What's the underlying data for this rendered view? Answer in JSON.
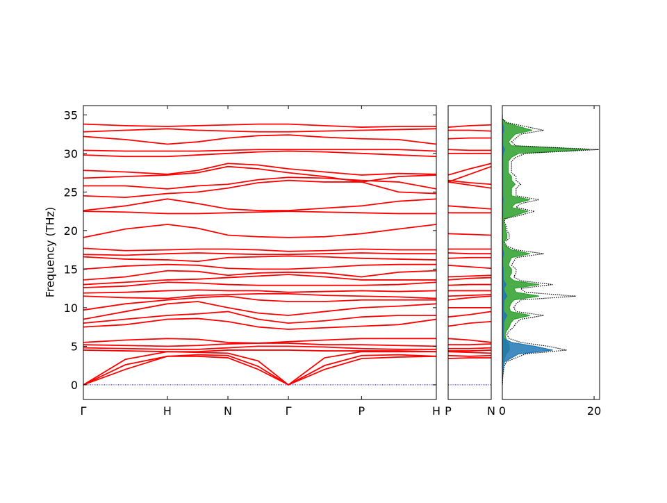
{
  "chart_data": [
    {
      "type": "line",
      "ylabel": "Frequency (THz)",
      "color": "#ff0000",
      "hline": {
        "value": 0,
        "color": "#0000ff"
      },
      "xlim": [
        0,
        4.2
      ],
      "xticks": [
        {
          "value": 0,
          "label": "Γ"
        },
        {
          "value": 1,
          "label": "H"
        },
        {
          "value": 1.72,
          "label": "N"
        },
        {
          "value": 2.44,
          "label": "Γ"
        },
        {
          "value": 3.31,
          "label": "P"
        },
        {
          "value": 4.2,
          "label": "H"
        }
      ],
      "ylim": [
        -1.9,
        36.2
      ],
      "yticks": [
        0,
        5,
        10,
        15,
        20,
        25,
        30,
        35
      ],
      "x": [
        0,
        0.5,
        1.0,
        1.36,
        1.72,
        2.08,
        2.44,
        2.87,
        3.31,
        3.75,
        4.2
      ],
      "bands": [
        [
          0,
          2.0,
          3.7,
          3.7,
          3.5,
          2.0,
          0,
          2.0,
          3.4,
          3.6,
          3.7
        ],
        [
          0,
          2.6,
          3.7,
          3.9,
          3.8,
          2.4,
          0,
          2.5,
          3.8,
          3.9,
          3.7
        ],
        [
          0,
          3.3,
          4.3,
          4.2,
          4.1,
          3.1,
          0,
          3.5,
          4.3,
          4.3,
          4.3
        ],
        [
          4.5,
          4.4,
          4.3,
          4.3,
          4.5,
          4.5,
          4.5,
          4.4,
          4.4,
          4.4,
          4.3
        ],
        [
          4.8,
          4.7,
          4.6,
          4.6,
          4.8,
          5.0,
          5.0,
          4.9,
          4.7,
          4.6,
          4.6
        ],
        [
          5.2,
          5.1,
          5.0,
          5.1,
          5.3,
          5.4,
          5.4,
          5.2,
          5.2,
          5.1,
          5.0
        ],
        [
          5.5,
          5.8,
          6.0,
          5.9,
          5.5,
          5.4,
          5.6,
          5.8,
          6.0,
          6.0,
          6.0
        ],
        [
          7.5,
          7.8,
          8.5,
          8.6,
          8.2,
          7.5,
          7.2,
          7.4,
          7.6,
          7.8,
          8.5
        ],
        [
          8.0,
          8.5,
          9.0,
          9.2,
          9.5,
          8.5,
          8.0,
          8.3,
          8.8,
          9.0,
          9.0
        ],
        [
          8.5,
          9.5,
          10.5,
          10.8,
          10.0,
          9.3,
          9.0,
          9.5,
          10.0,
          10.2,
          10.5
        ],
        [
          9.7,
          10.5,
          11.0,
          11.3,
          11.5,
          11.0,
          10.8,
          10.8,
          11.0,
          11.0,
          11.0
        ],
        [
          11.5,
          11.3,
          11.2,
          11.6,
          11.7,
          11.8,
          11.8,
          11.6,
          11.5,
          11.4,
          11.2
        ],
        [
          11.9,
          12.0,
          12.2,
          12.3,
          12.2,
          12.2,
          12.0,
          12.1,
          12.2,
          12.1,
          12.2
        ],
        [
          12.6,
          12.8,
          13.3,
          13.2,
          13.0,
          12.9,
          12.9,
          12.9,
          12.9,
          13.0,
          13.3
        ],
        [
          13.0,
          13.3,
          13.6,
          13.7,
          13.9,
          14.1,
          14.3,
          14.0,
          13.6,
          13.6,
          13.6
        ],
        [
          13.6,
          14.0,
          14.8,
          14.7,
          14.2,
          14.5,
          14.6,
          14.5,
          14.0,
          14.6,
          14.8
        ],
        [
          15.0,
          15.4,
          15.6,
          15.5,
          15.1,
          15.0,
          15.0,
          15.2,
          15.5,
          15.6,
          15.6
        ],
        [
          16.6,
          16.3,
          16.2,
          16.0,
          16.5,
          16.6,
          16.7,
          16.6,
          16.4,
          16.3,
          16.2
        ],
        [
          16.9,
          16.8,
          17.0,
          17.1,
          17.0,
          16.9,
          16.9,
          17.0,
          17.1,
          17.0,
          17.0
        ],
        [
          17.7,
          17.4,
          17.5,
          17.6,
          17.6,
          17.5,
          17.3,
          17.4,
          17.6,
          17.5,
          17.5
        ],
        [
          19.1,
          20.2,
          20.8,
          20.3,
          19.4,
          19.2,
          19.1,
          19.2,
          19.6,
          20.2,
          20.8
        ],
        [
          22.5,
          22.4,
          22.2,
          22.2,
          22.3,
          22.4,
          22.5,
          22.4,
          22.3,
          22.2,
          22.2
        ],
        [
          22.6,
          23.2,
          24.1,
          23.5,
          22.8,
          22.6,
          22.6,
          22.9,
          23.2,
          23.8,
          24.1
        ],
        [
          24.5,
          24.3,
          24.8,
          25.0,
          25.5,
          26.2,
          26.5,
          26.3,
          26.3,
          25.0,
          24.8
        ],
        [
          25.8,
          25.8,
          25.4,
          25.8,
          26.0,
          26.6,
          26.9,
          26.8,
          26.5,
          26.3,
          25.4
        ],
        [
          26.8,
          27.0,
          27.2,
          27.5,
          28.3,
          28.0,
          27.5,
          27.0,
          26.3,
          27.0,
          27.2
        ],
        [
          27.8,
          27.6,
          27.3,
          27.8,
          28.7,
          28.5,
          28.0,
          27.6,
          27.2,
          27.4,
          27.3
        ],
        [
          29.8,
          29.6,
          29.6,
          29.8,
          30.0,
          30.2,
          30.3,
          30.2,
          30.0,
          29.8,
          29.6
        ],
        [
          30.4,
          30.3,
          30.3,
          30.3,
          30.4,
          30.5,
          30.5,
          30.5,
          30.5,
          30.5,
          30.3
        ],
        [
          32.2,
          31.8,
          31.2,
          31.5,
          32.0,
          32.3,
          32.4,
          32.1,
          31.9,
          31.8,
          31.2
        ],
        [
          32.8,
          33.0,
          33.2,
          33.0,
          32.9,
          32.8,
          32.8,
          32.9,
          33.0,
          33.1,
          33.2
        ],
        [
          33.8,
          33.6,
          33.5,
          33.6,
          33.7,
          33.8,
          33.8,
          33.6,
          33.4,
          33.5,
          33.5
        ]
      ]
    },
    {
      "type": "line",
      "color": "#ff0000",
      "hline": {
        "value": 0,
        "color": "#0000ff"
      },
      "xlim": [
        0,
        1
      ],
      "xticks": [
        {
          "value": 0,
          "label": "P"
        },
        {
          "value": 1,
          "label": "N"
        }
      ],
      "ylim": [
        -1.9,
        36.2
      ],
      "x": [
        0,
        0.5,
        1
      ],
      "bands": [
        [
          3.4,
          3.5,
          3.5
        ],
        [
          3.8,
          3.7,
          3.8
        ],
        [
          4.3,
          4.2,
          4.1
        ],
        [
          4.4,
          4.4,
          4.5
        ],
        [
          4.7,
          4.7,
          4.8
        ],
        [
          5.2,
          5.2,
          5.3
        ],
        [
          6.0,
          5.8,
          5.5
        ],
        [
          7.6,
          8.0,
          8.2
        ],
        [
          8.8,
          9.1,
          9.5
        ],
        [
          10.0,
          10.0,
          10.0
        ],
        [
          11.0,
          11.3,
          11.5
        ],
        [
          11.5,
          11.6,
          11.7
        ],
        [
          12.2,
          12.2,
          12.2
        ],
        [
          12.9,
          13.0,
          13.0
        ],
        [
          13.6,
          13.8,
          13.9
        ],
        [
          14.0,
          14.1,
          14.2
        ],
        [
          15.5,
          15.3,
          15.1
        ],
        [
          16.4,
          16.5,
          16.5
        ],
        [
          17.1,
          17.0,
          17.0
        ],
        [
          17.6,
          17.6,
          17.6
        ],
        [
          19.6,
          19.5,
          19.4
        ],
        [
          22.3,
          22.3,
          22.3
        ],
        [
          23.2,
          23.0,
          22.8
        ],
        [
          26.3,
          25.9,
          25.5
        ],
        [
          26.5,
          26.2,
          26.0
        ],
        [
          26.3,
          27.3,
          28.3
        ],
        [
          27.2,
          28.0,
          28.7
        ],
        [
          30.0,
          30.0,
          30.0
        ],
        [
          30.5,
          30.4,
          30.4
        ],
        [
          31.9,
          32.0,
          32.0
        ],
        [
          33.0,
          33.0,
          32.9
        ],
        [
          33.4,
          33.6,
          33.7
        ]
      ]
    },
    {
      "type": "area",
      "xlim": [
        0,
        21.2
      ],
      "xticks": [
        0,
        20
      ],
      "ylim": [
        -1.9,
        36.2
      ],
      "freq": [
        0,
        0.5,
        1,
        1.5,
        2,
        2.5,
        3,
        3.5,
        4,
        4.5,
        5,
        5.5,
        6,
        6.5,
        7,
        7.5,
        8,
        8.5,
        9,
        9.5,
        10,
        10.5,
        11,
        11.5,
        12,
        12.5,
        13,
        13.5,
        14,
        14.5,
        15,
        15.5,
        16,
        16.5,
        17,
        17.5,
        18,
        18.5,
        19,
        19.5,
        20,
        20.5,
        21,
        21.5,
        22,
        22.5,
        23,
        23.5,
        24,
        24.5,
        25,
        25.5,
        26,
        26.5,
        27,
        27.5,
        28,
        28.5,
        29,
        29.5,
        30,
        30.5,
        31,
        31.5,
        32,
        32.5,
        33,
        33.5,
        34,
        34.5,
        35
      ],
      "total": {
        "color": "#000000",
        "values": [
          0,
          0.05,
          0.1,
          0.2,
          0.3,
          0.5,
          0.9,
          3,
          5,
          14,
          10,
          4,
          1.5,
          1,
          1.5,
          2.5,
          3,
          4,
          9,
          3,
          2.5,
          3,
          4,
          16,
          5,
          4,
          11,
          4,
          2.5,
          3,
          3,
          2,
          2.5,
          3,
          9,
          3,
          1,
          0.5,
          1.5,
          1.5,
          1,
          1,
          0.5,
          0.5,
          4,
          7,
          3,
          4,
          8,
          3,
          3,
          3,
          4,
          3,
          3,
          2,
          2,
          2,
          2,
          3,
          5,
          21,
          3,
          2,
          3,
          4,
          9,
          5,
          1,
          0,
          0
        ]
      },
      "series": [
        {
          "color": "#2ca02c",
          "values": [
            0,
            0,
            0,
            0,
            0,
            0.1,
            0.2,
            0.5,
            0.8,
            1.5,
            1.5,
            1.2,
            0.8,
            0.6,
            0.9,
            1.5,
            1.8,
            2.5,
            6,
            1.8,
            1.5,
            1.8,
            2.5,
            8,
            3,
            2.5,
            8,
            2.5,
            1.5,
            2,
            2,
            1.3,
            1.6,
            2,
            6,
            2,
            0.7,
            0.3,
            1,
            1,
            0.7,
            0.7,
            0.3,
            0.3,
            3,
            5.5,
            2,
            2.8,
            6,
            2,
            2,
            2,
            2.8,
            2,
            2,
            1.3,
            1.3,
            1.3,
            1.3,
            2,
            3.5,
            19,
            2,
            1.3,
            2,
            2.8,
            6.5,
            3.5,
            0.7,
            0,
            0
          ]
        },
        {
          "color": "#1f77b4",
          "values": [
            0,
            0,
            0.05,
            0.1,
            0.2,
            0.3,
            0.5,
            2,
            3.5,
            11,
            7,
            2,
            0.3,
            0.2,
            0.2,
            0.3,
            0.3,
            0.5,
            1,
            0.3,
            0.3,
            0.3,
            0.4,
            1,
            0.5,
            0.3,
            0.8,
            0.3,
            0.2,
            0.2,
            0.2,
            0.1,
            0.1,
            0.1,
            0.3,
            0.1,
            0,
            0,
            0,
            0,
            0,
            0,
            0,
            0,
            0.1,
            0.1,
            0.1,
            0.1,
            0.2,
            0.1,
            0.1,
            0.1,
            0.1,
            0.1,
            0.1,
            0.1,
            0.1,
            0.1,
            0.1,
            0.1,
            0.2,
            0.5,
            0.1,
            0.1,
            0.1,
            0.1,
            0.3,
            0.2,
            0,
            0,
            0
          ]
        }
      ]
    }
  ]
}
